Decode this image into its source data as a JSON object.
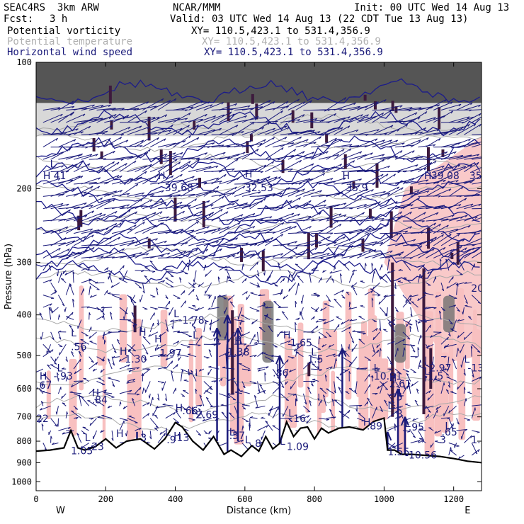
{
  "header": {
    "model": "SEAC4RS  3km ARW",
    "center": "NCAR/MMM",
    "init": "Init: 00 UTC Wed 14 Aug 13",
    "fcst_label": "Fcst:",
    "fcst_value": "3 h",
    "valid": "Valid: 03 UTC Wed 14 Aug 13 (22 CDT Tue 13 Aug 13)"
  },
  "legend": [
    {
      "name": "Potential vorticity",
      "xy": "XY= 110.5,423.1 to 531.4,356.9",
      "color": "#000000"
    },
    {
      "name": "Potential temperature",
      "xy": "XY= 110.5,423.1 to 531.4,356.9",
      "color": "#b0b0b0"
    },
    {
      "name": "Horizontal wind speed",
      "xy": "XY= 110.5,423.1 to 531.4,356.9",
      "color": "#1a1a7a"
    }
  ],
  "chart_data": {
    "type": "cross-section",
    "xlabel": "Distance (km)",
    "ylabel": "Pressure (hPa)",
    "x_range": [
      0,
      1280
    ],
    "y_range": [
      100,
      1050
    ],
    "y_scale": "log-pressure, inverted",
    "x_ticks": [
      0,
      200,
      400,
      600,
      800,
      1000,
      1200
    ],
    "x_tick_labels": [
      "0",
      "200",
      "400",
      "600",
      "800",
      "1000",
      "1200"
    ],
    "y_ticks": [
      100,
      200,
      300,
      400,
      500,
      600,
      700,
      800,
      900,
      1000
    ],
    "y_tick_labels": [
      "100",
      "200",
      "300",
      "400",
      "500",
      "600",
      "700",
      "800",
      "900",
      "1000"
    ],
    "x_end_labels": {
      "left": "W",
      "right": "E"
    },
    "terrain_km": [
      0,
      40,
      80,
      100,
      120,
      140,
      170,
      200,
      230,
      260,
      300,
      340,
      370,
      400,
      420,
      450,
      480,
      510,
      540,
      560,
      590,
      620,
      640,
      660,
      680,
      700,
      720,
      740,
      760,
      780,
      800,
      820,
      840,
      870,
      900,
      940,
      970,
      1000,
      1010,
      1030,
      1050,
      1080,
      1120,
      1160,
      1200,
      1240,
      1280
    ],
    "terrain_hpa": [
      845,
      840,
      830,
      755,
      830,
      840,
      825,
      790,
      830,
      800,
      790,
      835,
      790,
      722,
      740,
      800,
      840,
      780,
      860,
      840,
      870,
      820,
      845,
      780,
      835,
      810,
      720,
      780,
      745,
      740,
      790,
      745,
      765,
      745,
      740,
      752,
      718,
      705,
      840,
      840,
      860,
      860,
      865,
      870,
      880,
      893,
      900
    ],
    "colors": {
      "pv": "#3d1a3d",
      "wind": "#1a1a7a",
      "theta": "#a8a8a8",
      "shade_pink": "#f8c0c0",
      "shade_gray": "#707070"
    },
    "annotations": [
      {
        "text": "L",
        "x": 40,
        "p": 178
      },
      {
        "text": "H",
        "x": 20,
        "p": 190
      },
      {
        "text": "41",
        "x": 50,
        "p": 190
      },
      {
        "text": "H",
        "x": 350,
        "p": 190
      },
      {
        "text": "39.68",
        "x": 370,
        "p": 203
      },
      {
        "text": "H",
        "x": 600,
        "p": 188
      },
      {
        "text": "32.53",
        "x": 600,
        "p": 203
      },
      {
        "text": "H",
        "x": 880,
        "p": 190
      },
      {
        "text": "35.9",
        "x": 890,
        "p": 203
      },
      {
        "text": "H",
        "x": 1115,
        "p": 190
      },
      {
        "text": "39.08",
        "x": 1135,
        "p": 190
      },
      {
        "text": "35",
        "x": 1245,
        "p": 190
      },
      {
        "text": "20",
        "x": 1250,
        "p": 352
      },
      {
        "text": "L",
        "x": 395,
        "p": 405
      },
      {
        "text": "-1.78",
        "x": 410,
        "p": 420
      },
      {
        "text": "L",
        "x": 100,
        "p": 450
      },
      {
        "text": ".56",
        "x": 100,
        "p": 485
      },
      {
        "text": "H",
        "x": 340,
        "p": 465
      },
      {
        "text": "1.97",
        "x": 355,
        "p": 503
      },
      {
        "text": "H",
        "x": 240,
        "p": 498
      },
      {
        "text": "1.30",
        "x": 255,
        "p": 520
      },
      {
        "text": "H",
        "x": 295,
        "p": 448
      },
      {
        "text": "L",
        "x": 450,
        "p": 455
      },
      {
        "text": "H",
        "x": 710,
        "p": 455
      },
      {
        "text": "1.65",
        "x": 730,
        "p": 475
      },
      {
        "text": "H",
        "x": 570,
        "p": 470
      },
      {
        "text": "1.38",
        "x": 550,
        "p": 500
      },
      {
        "text": "L",
        "x": 790,
        "p": 500
      },
      {
        "text": "1.5",
        "x": 780,
        "p": 520
      },
      {
        "text": "L",
        "x": 60,
        "p": 545
      },
      {
        "text": "-.93",
        "x": 50,
        "p": 570
      },
      {
        "text": "H",
        "x": 10,
        "p": 570
      },
      {
        "text": ".67",
        "x": 0,
        "p": 600
      },
      {
        "text": "L",
        "x": 690,
        "p": 545
      },
      {
        "text": ".86",
        "x": 680,
        "p": 560
      },
      {
        "text": "L",
        "x": 970,
        "p": 545
      },
      {
        "text": "-10.91",
        "x": 960,
        "p": 570
      },
      {
        "text": "H",
        "x": 1015,
        "p": 575
      },
      {
        "text": "2.61",
        "x": 1015,
        "p": 595
      },
      {
        "text": "2.97",
        "x": 1130,
        "p": 545
      },
      {
        "text": "L",
        "x": 1115,
        "p": 555
      },
      {
        "text": "-1.5",
        "x": 1115,
        "p": 570
      },
      {
        "text": "L",
        "x": 1230,
        "p": 520
      },
      {
        "text": "-13",
        "x": 1240,
        "p": 545
      },
      {
        "text": "L",
        "x": 1040,
        "p": 625
      },
      {
        "text": "5",
        "x": 1035,
        "p": 640
      },
      {
        "text": "H",
        "x": 160,
        "p": 625
      },
      {
        "text": ".84",
        "x": 160,
        "p": 650
      },
      {
        "text": "H",
        "x": 400,
        "p": 680
      },
      {
        "text": ".66",
        "x": 420,
        "p": 690
      },
      {
        "text": "2.69",
        "x": 460,
        "p": 705
      },
      {
        "text": "L",
        "x": 445,
        "p": 690
      },
      {
        "text": "L",
        "x": 725,
        "p": 700
      },
      {
        "text": ".16",
        "x": 730,
        "p": 720
      },
      {
        "text": "L",
        "x": 1010,
        "p": 670
      },
      {
        "text": "5",
        "x": 1035,
        "p": 690
      },
      {
        "text": "22",
        "x": 0,
        "p": 720
      },
      {
        "text": "H",
        "x": 940,
        "p": 735
      },
      {
        "text": ".89",
        "x": 950,
        "p": 750
      },
      {
        "text": "L",
        "x": 1060,
        "p": 740
      },
      {
        "text": ".95",
        "x": 1070,
        "p": 755
      },
      {
        "text": "L",
        "x": 1175,
        "p": 750
      },
      {
        "text": ".65",
        "x": 1165,
        "p": 775
      },
      {
        "text": "H",
        "x": 230,
        "p": 782
      },
      {
        "text": "L",
        "x": 370,
        "p": 775
      },
      {
        "text": "H",
        "x": 395,
        "p": 792
      },
      {
        "text": ".13",
        "x": 395,
        "p": 800
      },
      {
        "text": ".9",
        "x": 375,
        "p": 810
      },
      {
        "text": "3",
        "x": 300,
        "p": 800
      },
      {
        "text": "L",
        "x": 555,
        "p": 775
      },
      {
        "text": ".57",
        "x": 555,
        "p": 790
      },
      {
        "text": "L",
        "x": 600,
        "p": 810
      },
      {
        "text": ".8",
        "x": 620,
        "p": 825
      },
      {
        "text": "L",
        "x": 140,
        "p": 800
      },
      {
        "text": ".23",
        "x": 150,
        "p": 840
      },
      {
        "text": "L",
        "x": 700,
        "p": 815
      },
      {
        "text": "1.09",
        "x": 720,
        "p": 840
      },
      {
        "text": "1.05",
        "x": 100,
        "p": 860
      },
      {
        "text": "1.55",
        "x": 1010,
        "p": 865
      },
      {
        "text": "-10.56",
        "x": 1060,
        "p": 880
      },
      {
        "text": "3",
        "x": 1160,
        "p": 810
      },
      {
        "text": "1.2",
        "x": 1250,
        "p": 810
      }
    ]
  }
}
